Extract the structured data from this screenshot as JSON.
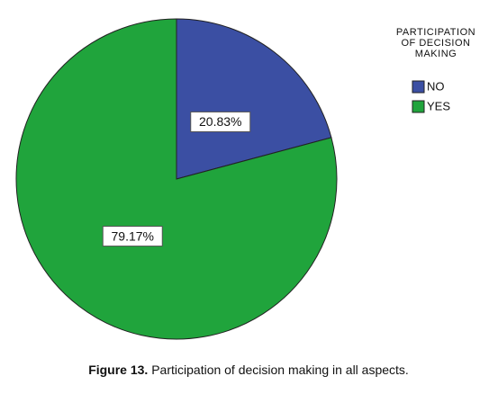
{
  "chart_data": {
    "type": "pie",
    "categories": [
      "NO",
      "YES"
    ],
    "values": [
      20.83,
      79.17
    ],
    "value_labels": [
      "20.83%",
      "79.17%"
    ],
    "colors": [
      "#3b4fa3",
      "#20a43c"
    ],
    "legend_title": [
      "PARTICIPATION",
      "OF DECISION",
      "MAKING"
    ],
    "legend": "top-right",
    "caption_label": "Figure 13.",
    "caption_text": "Participation of decision making in all aspects."
  }
}
